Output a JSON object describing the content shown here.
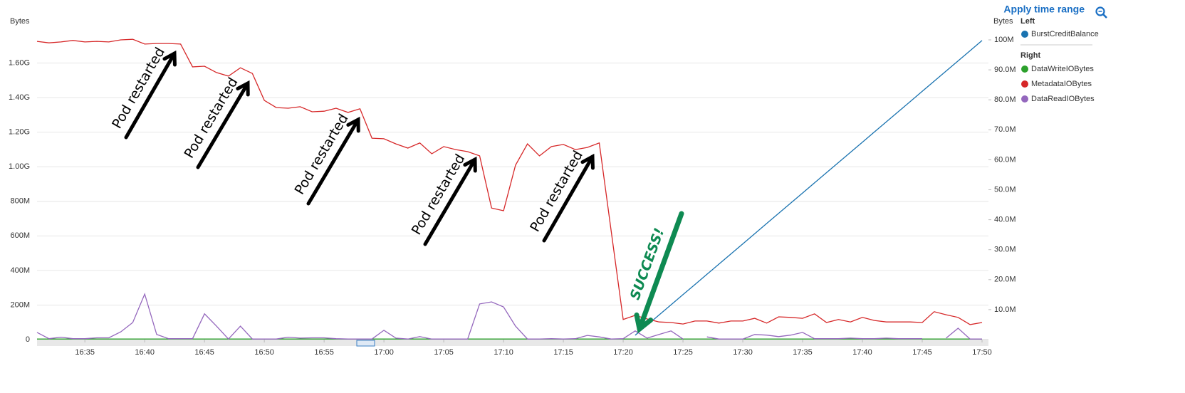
{
  "chart_data": {
    "type": "line",
    "apply_time_range": "Apply time range",
    "ylabel": "Bytes",
    "y2label": "Bytes",
    "legend_groups": {
      "left": "Left",
      "right": "Right"
    },
    "grid": true,
    "annotations": [
      "Pod restarted",
      "Pod restarted",
      "Pod restarted",
      "Pod restarted",
      "Pod restarted",
      "SUCCESS!"
    ],
    "xlim": [
      "16:31",
      "17:50"
    ],
    "xticks": [
      "16:35",
      "16:40",
      "16:45",
      "16:50",
      "16:55",
      "17:00",
      "17:05",
      "17:10",
      "17:15",
      "17:20",
      "17:25",
      "17:30",
      "17:35",
      "17:40",
      "17:45",
      "17:50"
    ],
    "ylim": [
      0,
      1800000000
    ],
    "yticks": [
      0,
      {
        "value": 200000000,
        "label": "200M"
      },
      {
        "value": 400000000,
        "label": "400M"
      },
      {
        "value": 600000000,
        "label": "600M"
      },
      {
        "value": 800000000,
        "label": "800M"
      },
      {
        "value": 1000000000,
        "label": "1.00G"
      },
      {
        "value": 1200000000,
        "label": "1.20G"
      },
      {
        "value": 1400000000,
        "label": "1.40G"
      },
      {
        "value": 1600000000,
        "label": "1.60G"
      }
    ],
    "y2lim": [
      0,
      103800000
    ],
    "y2ticks": [
      {
        "value": 10000000,
        "label": "10.0M"
      },
      {
        "value": 20000000,
        "label": "20.0M"
      },
      {
        "value": 30000000,
        "label": "30.0M"
      },
      {
        "value": 40000000,
        "label": "40.0M"
      },
      {
        "value": 50000000,
        "label": "50.0M"
      },
      {
        "value": 60000000,
        "label": "60.0M"
      },
      {
        "value": 70000000,
        "label": "70.0M"
      },
      {
        "value": 80000000,
        "label": "80.0M"
      },
      {
        "value": 90000000,
        "label": "90.0M"
      },
      {
        "value": 100000000,
        "label": "100M"
      }
    ],
    "x": [
      "16:31",
      "16:32",
      "16:33",
      "16:34",
      "16:35",
      "16:36",
      "16:37",
      "16:38",
      "16:39",
      "16:40",
      "16:41",
      "16:42",
      "16:43",
      "16:44",
      "16:45",
      "16:46",
      "16:47",
      "16:48",
      "16:49",
      "16:50",
      "16:51",
      "16:52",
      "16:53",
      "16:54",
      "16:55",
      "16:56",
      "16:57",
      "16:58",
      "16:59",
      "17:00",
      "17:01",
      "17:02",
      "17:03",
      "17:04",
      "17:05",
      "17:06",
      "17:07",
      "17:08",
      "17:09",
      "17:10",
      "17:11",
      "17:12",
      "17:13",
      "17:14",
      "17:15",
      "17:16",
      "17:17",
      "17:18",
      "17:19",
      "17:20",
      "17:21",
      "17:22",
      "17:23",
      "17:24",
      "17:25",
      "17:26",
      "17:27",
      "17:28",
      "17:29",
      "17:30",
      "17:31",
      "17:32",
      "17:33",
      "17:34",
      "17:35",
      "17:36",
      "17:37",
      "17:38",
      "17:39",
      "17:40",
      "17:41",
      "17:42",
      "17:43",
      "17:44",
      "17:45",
      "17:46",
      "17:47",
      "17:48",
      "17:49",
      "17:50"
    ],
    "series": [
      {
        "name": "BurstCreditBalance",
        "color": "#1a73b0",
        "axis": "y",
        "values": [
          null,
          null,
          null,
          null,
          null,
          null,
          null,
          null,
          null,
          null,
          null,
          null,
          null,
          null,
          null,
          null,
          null,
          null,
          null,
          null,
          null,
          null,
          null,
          null,
          null,
          null,
          null,
          null,
          null,
          null,
          null,
          null,
          null,
          null,
          null,
          null,
          null,
          null,
          null,
          null,
          null,
          null,
          null,
          null,
          null,
          null,
          null,
          null,
          null,
          null,
          25000000,
          83800000,
          142600000,
          201400000,
          260200000,
          319000000,
          377800000,
          436600000,
          495400000,
          554200000,
          613000000,
          671800000,
          730600000,
          789400000,
          848200000,
          907000000,
          965800000,
          1024600000,
          1083400000,
          1142200000,
          1201000000,
          1259800000,
          1318600000,
          1377400000,
          1436200000,
          1495000000,
          1553800000,
          1612600000,
          1671400000,
          1730200000
        ]
      },
      {
        "name": "DataWriteIOBytes",
        "color": "#2ca02c",
        "axis": "y2",
        "values": [
          200000,
          200000,
          200000,
          200000,
          200000,
          200000,
          200000,
          200000,
          200000,
          200000,
          200000,
          200000,
          200000,
          200000,
          200000,
          200000,
          200000,
          200000,
          200000,
          200000,
          200000,
          200000,
          200000,
          200000,
          200000,
          200000,
          200000,
          200000,
          200000,
          200000,
          200000,
          200000,
          200000,
          200000,
          200000,
          200000,
          200000,
          200000,
          200000,
          200000,
          200000,
          200000,
          200000,
          200000,
          200000,
          200000,
          200000,
          200000,
          200000,
          200000,
          200000,
          200000,
          200000,
          200000,
          200000,
          200000,
          200000,
          200000,
          200000,
          200000,
          200000,
          200000,
          200000,
          200000,
          200000,
          200000,
          200000,
          200000,
          200000,
          200000,
          200000,
          200000,
          200000,
          200000,
          200000,
          200000,
          200000,
          200000,
          200000,
          200000
        ]
      },
      {
        "name": "MetadataIOBytes",
        "color": "#d62728",
        "axis": "y2",
        "values": [
          99500000,
          99000000,
          99300000,
          99800000,
          99300000,
          99500000,
          99300000,
          100000000,
          100200000,
          98600000,
          98800000,
          98800000,
          98600000,
          91000000,
          91200000,
          89100000,
          87900000,
          90700000,
          88800000,
          79800000,
          77400000,
          77200000,
          77700000,
          76000000,
          76200000,
          77200000,
          75800000,
          77000000,
          67200000,
          67000000,
          65300000,
          63900000,
          65600000,
          62000000,
          64400000,
          63400000,
          62700000,
          61300000,
          43900000,
          43000000,
          58200000,
          65300000,
          61300000,
          64400000,
          65100000,
          63400000,
          64100000,
          65600000,
          36100000,
          6700000,
          8100000,
          6900000,
          5900000,
          5700000,
          5200000,
          6200000,
          6200000,
          5500000,
          6200000,
          6200000,
          7100000,
          5500000,
          7600000,
          7400000,
          7100000,
          8600000,
          5700000,
          6700000,
          5900000,
          7400000,
          6400000,
          5900000,
          5900000,
          5900000,
          5700000,
          9300000,
          8300000,
          7400000,
          5000000,
          5700000
        ]
      },
      {
        "name": "DataReadIOBytes",
        "color": "#9467bd",
        "axis": "y2",
        "values": [
          2400000,
          300000,
          800000,
          300000,
          300000,
          600000,
          600000,
          2600000,
          5700000,
          15200000,
          1700000,
          300000,
          300000,
          300000,
          8600000,
          4500000,
          200000,
          4500000,
          200000,
          200000,
          200000,
          800000,
          500000,
          600000,
          600000,
          300000,
          200000,
          200000,
          200000,
          3100000,
          500000,
          200000,
          1000000,
          200000,
          200000,
          200000,
          200000,
          11900000,
          12600000,
          10900000,
          4500000,
          200000,
          200000,
          300000,
          200000,
          300000,
          1400000,
          900000,
          200000,
          300000,
          2900000,
          500000,
          1700000,
          2900000,
          200000,
          null,
          900000,
          200000,
          200000,
          200000,
          1700000,
          1500000,
          1000000,
          1500000,
          2400000,
          300000,
          300000,
          300000,
          500000,
          300000,
          300000,
          500000,
          300000,
          300000,
          300000,
          null,
          500000,
          3800000,
          200000,
          200000
        ]
      }
    ]
  }
}
